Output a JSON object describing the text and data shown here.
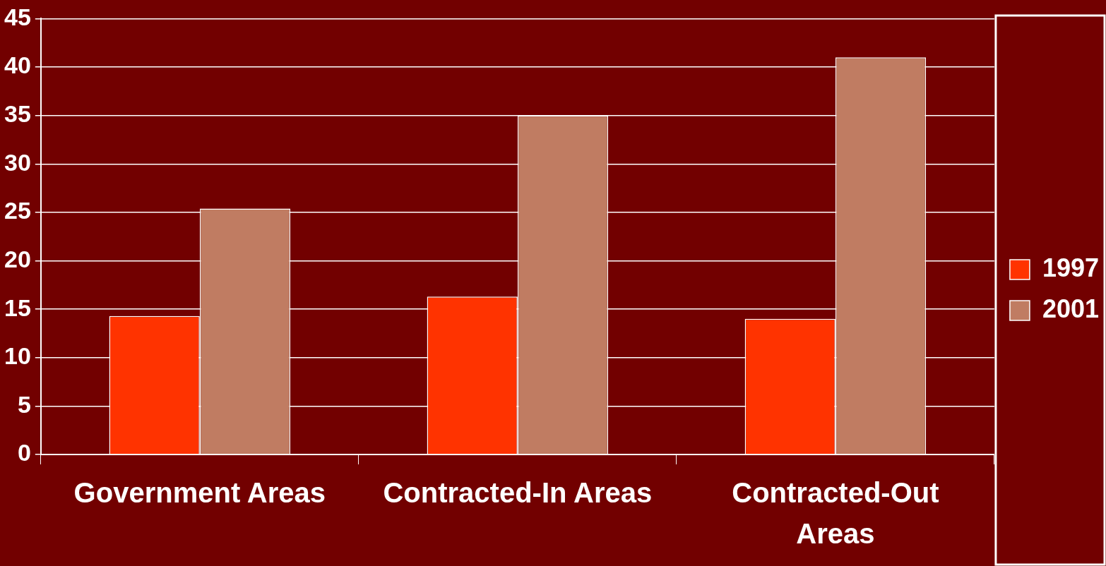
{
  "chart_data": {
    "type": "bar",
    "categories": [
      "Government Areas",
      "Contracted-In Areas",
      "Contracted-Out Areas"
    ],
    "series": [
      {
        "name": "1997",
        "color": "#ff3300",
        "values": [
          14.3,
          16.3,
          14.0
        ]
      },
      {
        "name": "2001",
        "color": "#c07c62",
        "values": [
          25.4,
          35.0,
          41.0
        ]
      }
    ],
    "ylim": [
      0,
      45
    ],
    "yticks": [
      0,
      5,
      10,
      15,
      20,
      25,
      30,
      35,
      40,
      45
    ],
    "grid": "y",
    "legend": "right"
  }
}
